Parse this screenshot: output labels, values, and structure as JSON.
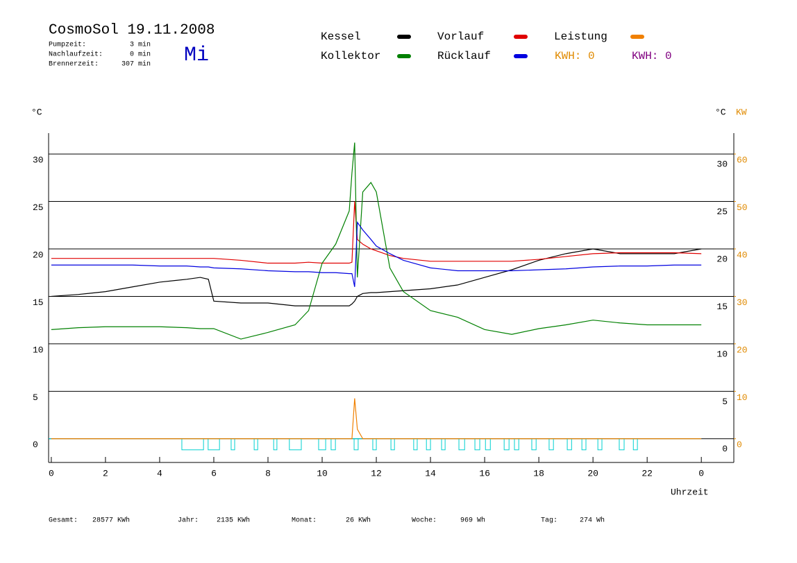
{
  "chart_data": {
    "type": "line",
    "title": "CosmoSol 19.11.2008",
    "weekday": "Mi",
    "info": [
      [
        "Pumpzeit:",
        "3 min"
      ],
      [
        "Nachlaufzeit:",
        "0 min"
      ],
      [
        "Brennerzeit:",
        "307 min"
      ]
    ],
    "kwh_labels": [
      {
        "text": "KWH: 0",
        "color": "#e08a00"
      },
      {
        "text": "KWH: 0",
        "color": "#800080"
      }
    ],
    "y_unit": "°C",
    "y2_units": [
      "°C",
      "KW"
    ],
    "x_label": "Uhrzeit",
    "x": [
      0,
      1,
      2,
      3,
      4,
      5,
      5.5,
      5.8,
      6,
      7,
      8,
      9,
      9.5,
      10,
      10.5,
      11,
      11.1,
      11.2,
      11.3,
      11.5,
      11.8,
      12,
      12.5,
      13,
      14,
      15,
      16,
      17,
      18,
      19,
      20,
      21,
      22,
      23,
      24
    ],
    "xlim": [
      -0.1,
      25.2
    ],
    "xticks": [
      0,
      2,
      4,
      6,
      8,
      10,
      12,
      14,
      16,
      18,
      20,
      22,
      {
        "value": 24,
        "label": "0"
      }
    ],
    "ylim": [
      -2.5,
      32.2
    ],
    "yticks": [
      0,
      5,
      10,
      15,
      20,
      25,
      30
    ],
    "y2lim": [
      -5,
      64.4
    ],
    "y2ticks": [
      0,
      10,
      20,
      30,
      40,
      50,
      60
    ],
    "grid": true,
    "series": [
      {
        "name": "Kessel",
        "color": "#000000",
        "values": [
          15,
          15.2,
          15.5,
          16,
          16.5,
          16.8,
          17,
          16.8,
          14.5,
          14.3,
          14.3,
          14,
          14,
          14,
          14,
          14,
          14.2,
          14.5,
          15,
          15.3,
          15.4,
          15.4,
          15.5,
          15.6,
          15.8,
          16.2,
          17,
          17.8,
          18.8,
          19.5,
          20,
          19.5,
          19.5,
          19.5,
          20
        ]
      },
      {
        "name": "Vorlauf",
        "color": "#e00000",
        "values": [
          19,
          19,
          19,
          19,
          19,
          19,
          19,
          19,
          19,
          18.8,
          18.5,
          18.5,
          18.6,
          18.5,
          18.5,
          18.5,
          18.6,
          25,
          21,
          20.5,
          20,
          19.8,
          19.3,
          19,
          18.7,
          18.7,
          18.7,
          18.7,
          18.9,
          19.2,
          19.5,
          19.6,
          19.6,
          19.6,
          19.5
        ]
      },
      {
        "name": "Leistung",
        "color": "#f08000",
        "axis": "y2",
        "values": [
          0,
          0,
          0,
          0,
          0,
          0,
          0,
          0,
          0,
          0,
          0,
          0,
          0,
          0,
          0,
          0,
          0,
          8.5,
          2,
          0,
          0,
          0,
          0,
          0,
          0,
          0,
          0,
          0,
          0,
          0,
          0,
          0,
          0,
          0,
          0
        ]
      },
      {
        "name": "Kollektor",
        "color": "#008000",
        "values": [
          11.5,
          11.7,
          11.8,
          11.8,
          11.8,
          11.7,
          11.6,
          11.6,
          11.6,
          10.5,
          11.2,
          12,
          13.5,
          18.5,
          20.5,
          24,
          28,
          31.2,
          17,
          26,
          27,
          26,
          18,
          15.5,
          13.5,
          12.8,
          11.5,
          11,
          11.6,
          12,
          12.5,
          12.2,
          12,
          12,
          12
        ]
      },
      {
        "name": "Rücklauf",
        "color": "#0000e0",
        "values": [
          18.3,
          18.3,
          18.3,
          18.3,
          18.2,
          18.2,
          18.1,
          18.1,
          18,
          17.9,
          17.7,
          17.6,
          17.6,
          17.5,
          17.5,
          17.4,
          17.4,
          16,
          22.8,
          22,
          21,
          20.3,
          19.5,
          18.8,
          18,
          17.7,
          17.7,
          17.7,
          17.8,
          17.9,
          18.1,
          18.2,
          18.2,
          18.3,
          18.3
        ]
      }
    ],
    "pump_color": "#00d0d0",
    "pump_on": [
      [
        4.82,
        5.62
      ],
      [
        5.79,
        6.21
      ],
      [
        6.64,
        6.77
      ],
      [
        7.49,
        7.62
      ],
      [
        8.21,
        8.33
      ],
      [
        8.79,
        9.23
      ],
      [
        9.87,
        10.13
      ],
      [
        10.33,
        10.49
      ],
      [
        11.18,
        11.33
      ],
      [
        11.87,
        12.0
      ],
      [
        12.54,
        12.67
      ],
      [
        13.38,
        13.51
      ],
      [
        13.85,
        14.0
      ],
      [
        14.41,
        14.54
      ],
      [
        15.05,
        15.26
      ],
      [
        15.64,
        15.82
      ],
      [
        16.03,
        16.21
      ],
      [
        16.72,
        16.9
      ],
      [
        17.1,
        17.26
      ],
      [
        17.74,
        17.9
      ],
      [
        18.38,
        18.54
      ],
      [
        19.05,
        19.21
      ],
      [
        19.59,
        19.74
      ],
      [
        20.18,
        20.33
      ],
      [
        20.97,
        21.15
      ],
      [
        21.49,
        21.64
      ]
    ],
    "totals": [
      [
        "Gesamt:",
        "28577 KWh"
      ],
      [
        "Jahr:",
        "2135 KWh"
      ],
      [
        "Monat:",
        "26 KWh"
      ],
      [
        "Woche:",
        "969 Wh"
      ],
      [
        "Tag:",
        "274 Wh"
      ]
    ]
  }
}
